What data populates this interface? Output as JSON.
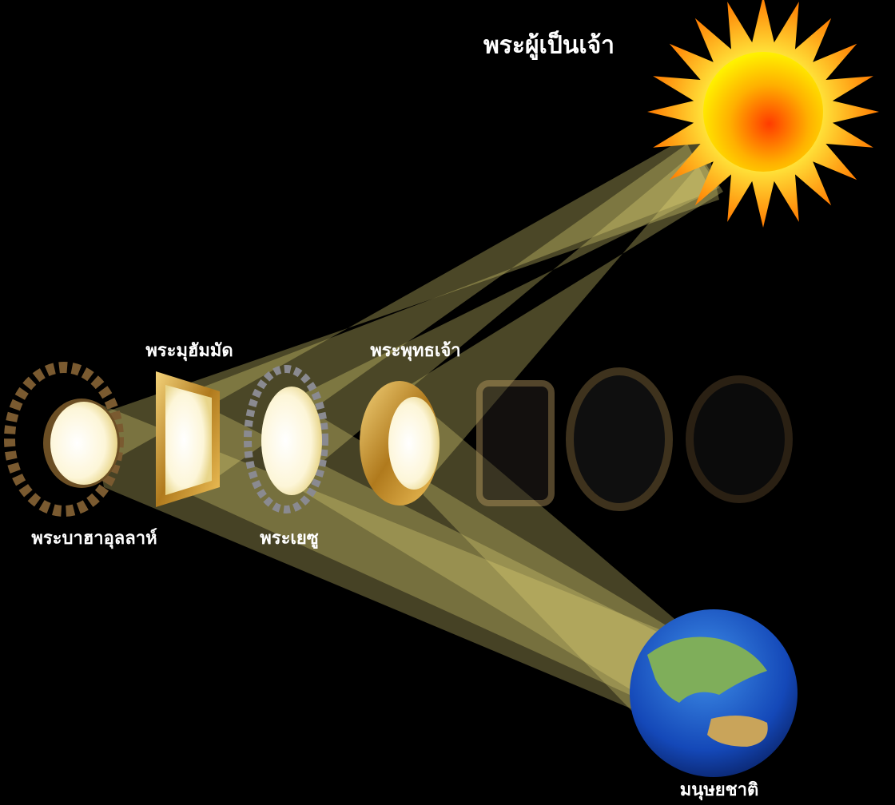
{
  "source": {
    "label": "พระผู้เป็นเจ้า"
  },
  "mirrors": [
    {
      "label": "พระบาฮาอุลลาห์"
    },
    {
      "label": "พระมุฮัมมัด"
    },
    {
      "label": "พระเยซู"
    },
    {
      "label": "พระพุทธเจ้า"
    }
  ],
  "target": {
    "label": "มนุษยชาติ"
  }
}
